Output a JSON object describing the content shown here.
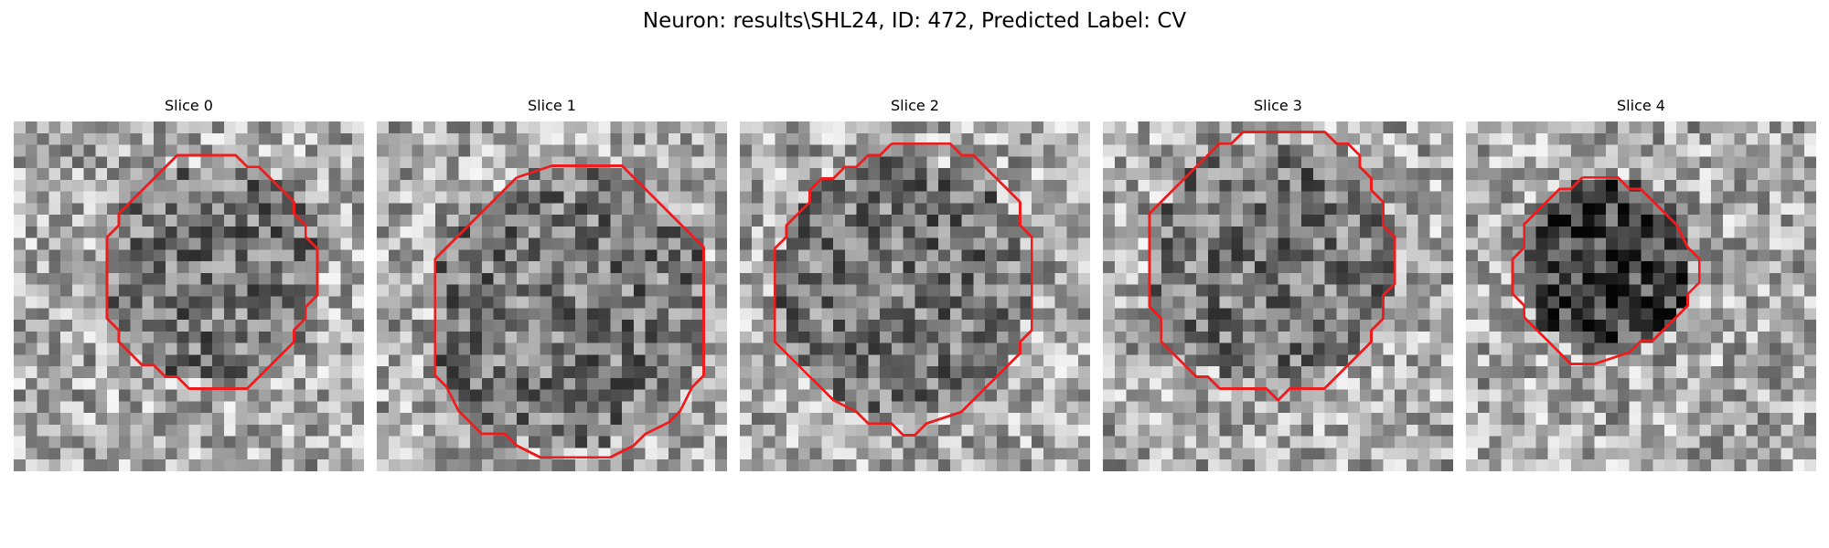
{
  "figure": {
    "title": "Neuron: results\\SHL24, ID: 472, Predicted Label: CV",
    "contour_color": "#ee1c1c"
  },
  "slices": [
    {
      "title": "Slice 0"
    },
    {
      "title": "Slice 1"
    },
    {
      "title": "Slice 2"
    },
    {
      "title": "Slice 3"
    },
    {
      "title": "Slice 4"
    }
  ]
}
